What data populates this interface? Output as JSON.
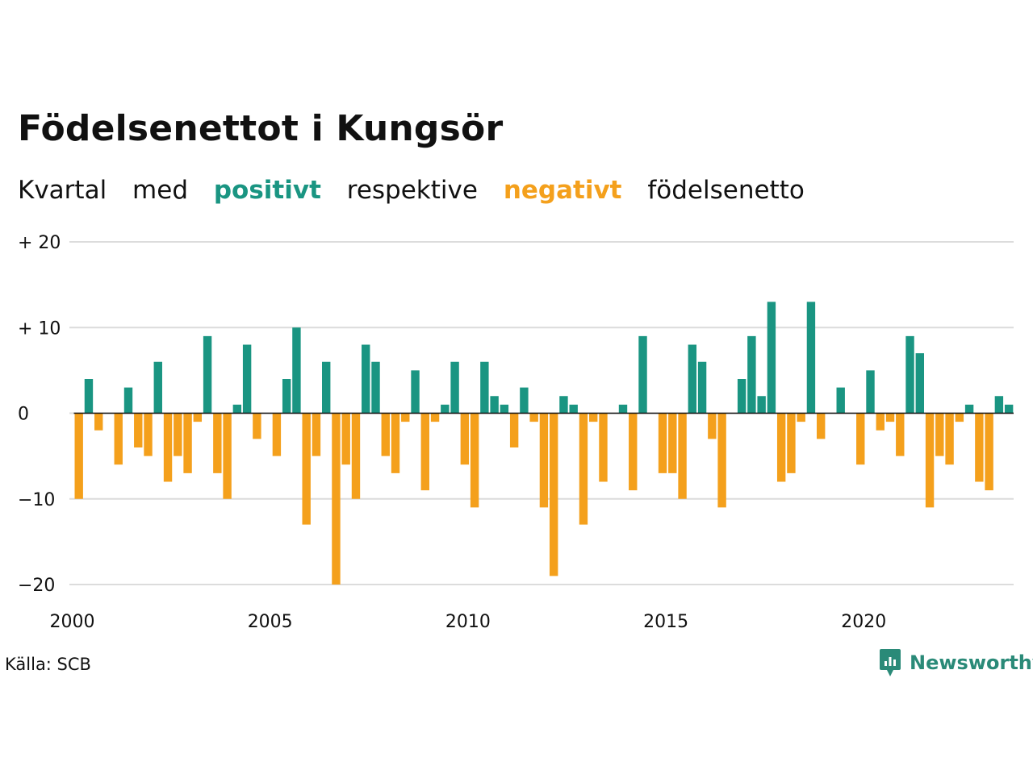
{
  "title": "Födelsenettot i Kungsör",
  "subtitle": {
    "part1": "Kvartal",
    "part2": "med",
    "positive": "positivt",
    "part3": "respektive",
    "negative": "negativt",
    "part4": "födelsenetto"
  },
  "colors": {
    "positive": "#1a9582",
    "negative": "#f4a01c",
    "grid": "#dcdcdc",
    "axis": "#111111",
    "brand": "#2a8a78"
  },
  "source": "Källa: SCB",
  "brand": {
    "name": "Newsworthy",
    "icon": "newsworthy-logo-icon"
  },
  "chart_data": {
    "type": "bar",
    "x_start": "2000 Q1",
    "y_ticks": [
      {
        "value": 20,
        "label": "+ 20"
      },
      {
        "value": 10,
        "label": "+ 10"
      },
      {
        "value": 0,
        "label": "0"
      },
      {
        "value": -10,
        "label": "−10"
      },
      {
        "value": -20,
        "label": "−20"
      }
    ],
    "x_ticks": [
      "2000",
      "2005",
      "2010",
      "2015",
      "2020"
    ],
    "ylim": [
      -20,
      20
    ],
    "grid": true,
    "values": [
      -10,
      4,
      -2,
      0,
      -6,
      3,
      -4,
      -5,
      6,
      -8,
      -5,
      -7,
      -1,
      9,
      -7,
      -10,
      1,
      8,
      -3,
      0,
      -5,
      4,
      10,
      -13,
      -5,
      6,
      -20,
      -6,
      -10,
      8,
      6,
      -5,
      -7,
      -1,
      5,
      -9,
      -1,
      1,
      6,
      -6,
      -11,
      6,
      2,
      1,
      -4,
      3,
      -1,
      -11,
      -19,
      2,
      1,
      -13,
      -1,
      -8,
      0,
      1,
      -9,
      9,
      0,
      -7,
      -7,
      -10,
      8,
      6,
      -3,
      -11,
      0,
      4,
      9,
      2,
      13,
      -8,
      -7,
      -1,
      13,
      -3,
      0,
      3,
      0,
      -6,
      5,
      -2,
      -1,
      -5,
      9,
      7,
      -11,
      -5,
      -6,
      -1,
      1,
      -8,
      -9,
      2,
      1
    ]
  }
}
